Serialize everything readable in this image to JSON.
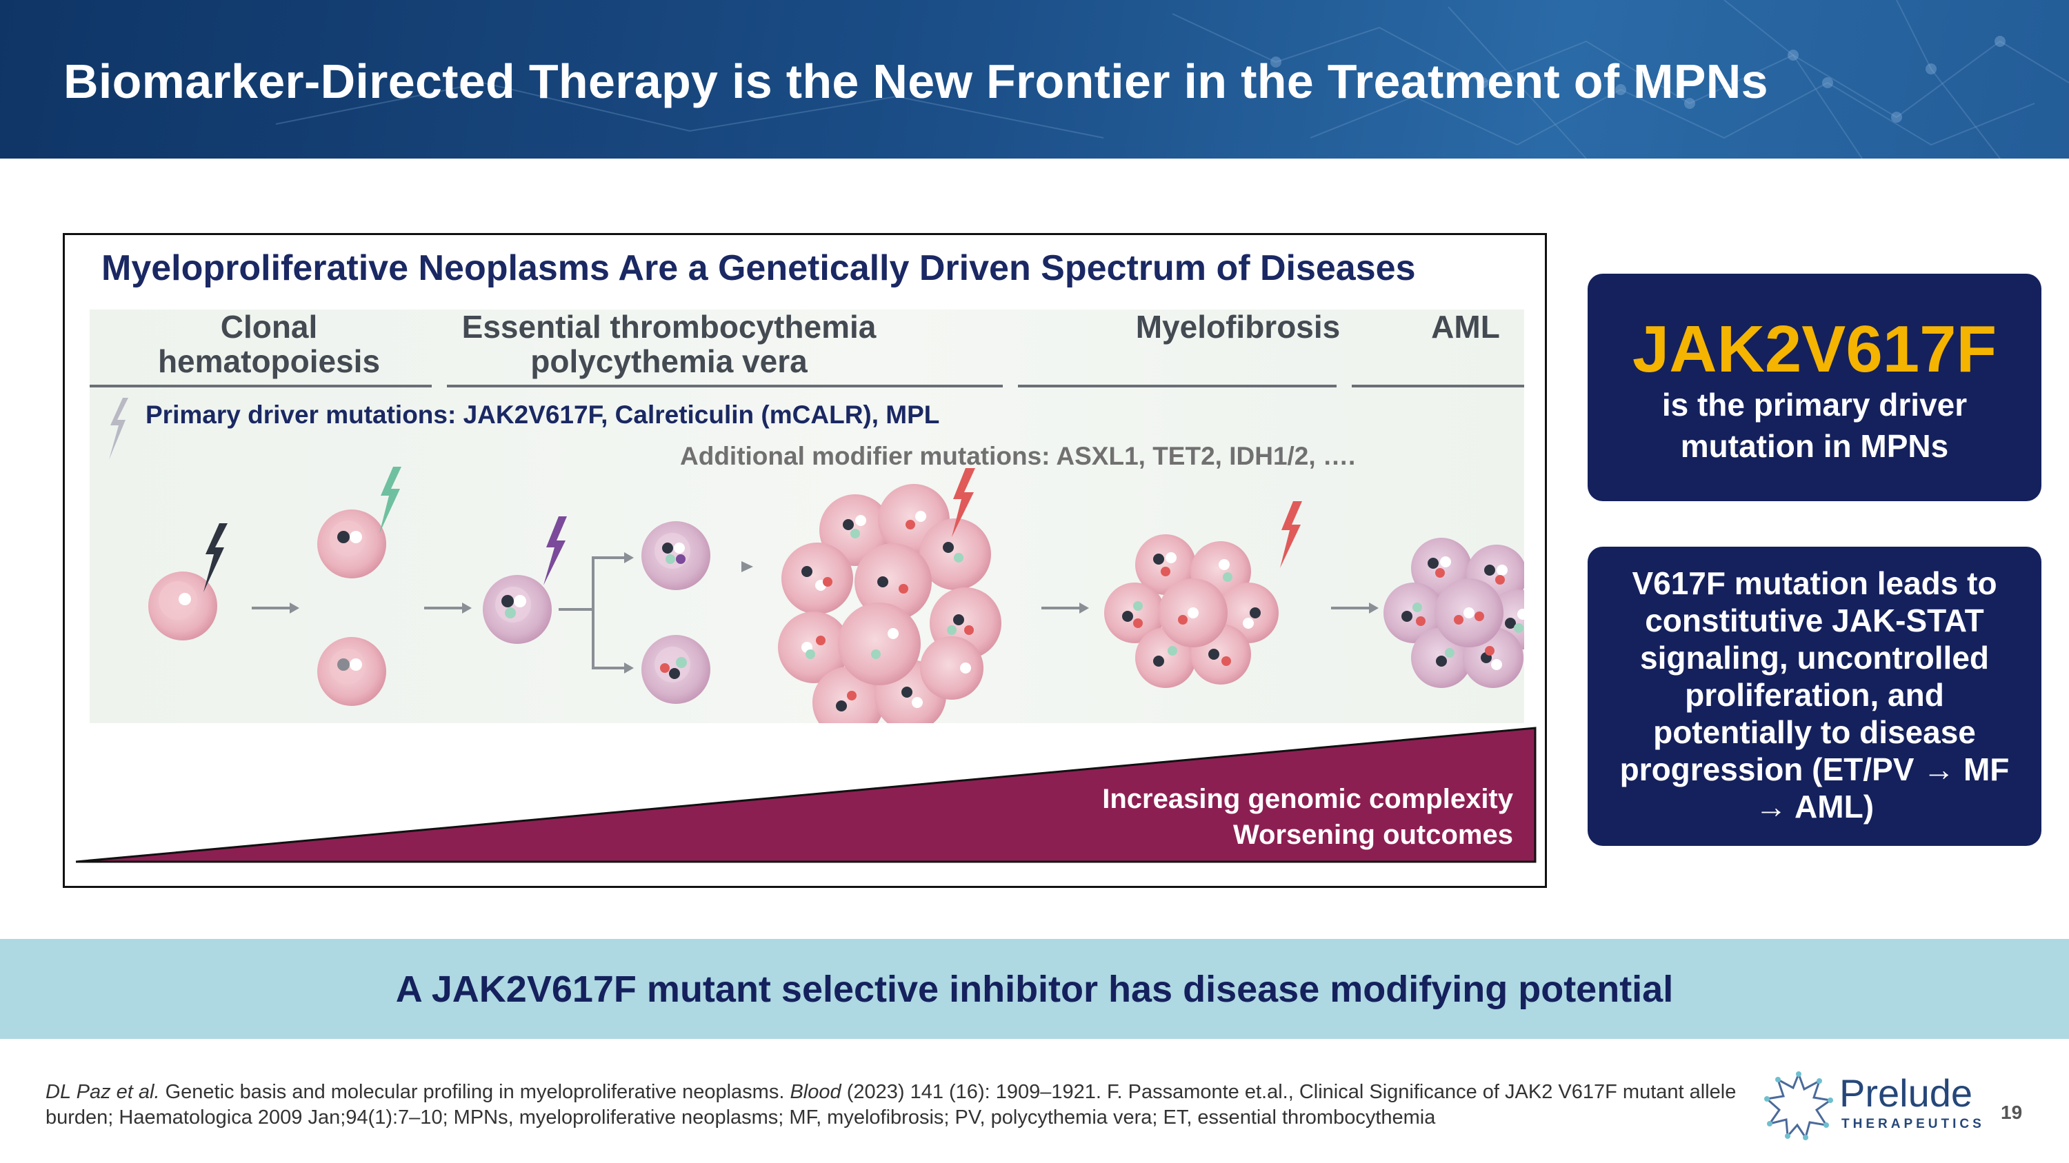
{
  "header": {
    "title": "Biomarker-Directed Therapy is the New Frontier in the Treatment of MPNs"
  },
  "figure": {
    "title": "Myeloproliferative Neoplasms Are a Genetically Driven Spectrum of Diseases",
    "stages": [
      {
        "line1": "Clonal",
        "line2": "hematopoiesis"
      },
      {
        "line1": "Essential thrombocythemia",
        "line2": "polycythemia vera"
      },
      {
        "line1": "",
        "line2": "Myelofibrosis"
      },
      {
        "line1": "",
        "line2": "AML"
      }
    ],
    "driver_mutations": "Primary driver mutations:  JAK2V617F, Calreticulin (mCALR), MPL",
    "modifier_mutations": "Additional modifier mutations:  ASXL1, TET2, IDH1/2, ….",
    "wedge_line1": "Increasing genomic complexity",
    "wedge_line2": "Worsening outcomes",
    "colors": {
      "wedge": "#8c1f52",
      "driver_bolt": "#2f3441",
      "mutation_bolt_green": "#6fc0a0",
      "mutation_bolt_purple": "#7b4a9a",
      "mutation_bolt_red": "#e05a5a"
    }
  },
  "cards": {
    "card1_title": "JAK2V617F",
    "card1_text": "is the primary driver mutation in MPNs",
    "card2_text": "V617F mutation leads to constitutive JAK-STAT signaling, uncontrolled proliferation, and potentially to disease progression (ET/PV → MF → AML)"
  },
  "banner": {
    "text": "A JAK2V617F mutant selective inhibitor has disease modifying potential"
  },
  "footer": {
    "ref_author": "DL Paz et al.",
    "ref_part1": " Genetic basis and molecular profiling in myeloproliferative neoplasms. ",
    "ref_journal": "Blood",
    "ref_part2": " (2023) 141 (16): 1909–1921. F. Passamonte et.al., Clinical Significance of JAK2 V617F mutant allele burden; Haematologica 2009 Jan;94(1):7–10; MPNs, myeloproliferative neoplasms; MF, myelofibrosis; PV, polycythemia vera; ET, essential thrombocythemia",
    "logo_word": "Prelude",
    "logo_sub": "THERAPEUTICS",
    "page_number": "19"
  },
  "icons": [
    "lightning-bolt-icon",
    "arrow-right-icon",
    "branch-arrow-icon",
    "cell-icon",
    "prelude-logo-icon"
  ]
}
